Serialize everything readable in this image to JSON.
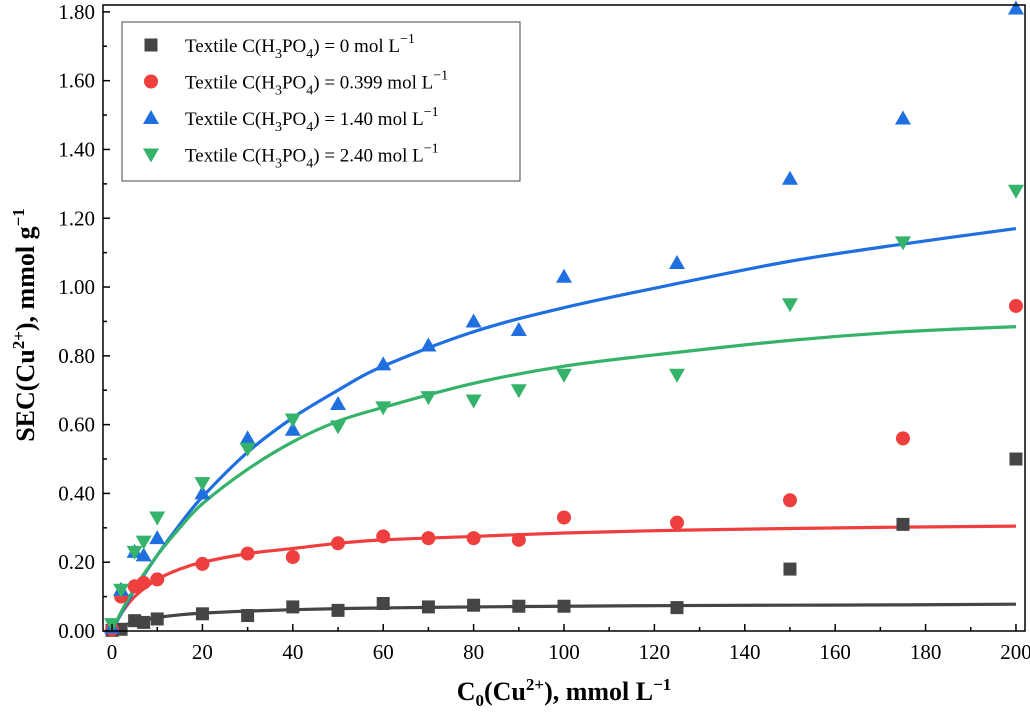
{
  "chart_data": {
    "type": "scatter",
    "xlabel": "C0(Cu2+), mmol L−1",
    "ylabel": "SEC(Cu2+), mmol g−1",
    "xlim": [
      -2,
      202
    ],
    "ylim": [
      0,
      1.82
    ],
    "x_ticks": [
      0,
      20,
      40,
      60,
      80,
      100,
      120,
      140,
      160,
      180,
      200
    ],
    "y_ticks": [
      0,
      0.2,
      0.4,
      0.6,
      0.8,
      1.0,
      1.2,
      1.4,
      1.6,
      1.8
    ],
    "x_tick_labels": [
      "0",
      "20",
      "40",
      "60",
      "80",
      "100",
      "120",
      "140",
      "160",
      "180",
      "200"
    ],
    "y_tick_labels": [
      "0.00",
      "0.20",
      "0.40",
      "0.60",
      "0.80",
      "1.00",
      "1.20",
      "1.40",
      "1.60",
      "1.80"
    ],
    "grid": false,
    "legend_position": "top-left",
    "series": [
      {
        "name": "Textile C(H3PO4) = 0 mol L−1",
        "name_parts": {
          "pre": "Textile C(H",
          "s1": "3",
          "mid": "PO",
          "s2": "4",
          "post": ") = 0 mol L",
          "sup": "−1"
        },
        "marker": "square",
        "color": "#454545",
        "x": [
          0,
          2,
          5,
          7,
          10,
          20,
          30,
          40,
          50,
          60,
          70,
          80,
          90,
          100,
          125,
          150,
          175,
          200
        ],
        "y": [
          0.002,
          0.005,
          0.03,
          0.025,
          0.035,
          0.05,
          0.045,
          0.07,
          0.06,
          0.08,
          0.07,
          0.075,
          0.072,
          0.072,
          0.068,
          0.18,
          0.31,
          0.5
        ],
        "fit": {
          "x": [
            0,
            2,
            5,
            10,
            15,
            20,
            30,
            40,
            50,
            60,
            80,
            100,
            125,
            150,
            175,
            200
          ],
          "y": [
            0,
            0.013,
            0.026,
            0.039,
            0.047,
            0.052,
            0.058,
            0.062,
            0.065,
            0.067,
            0.07,
            0.072,
            0.074,
            0.075,
            0.076,
            0.078
          ]
        }
      },
      {
        "name": "Textile C(H3PO4) = 0.399 mol L−1",
        "name_parts": {
          "pre": "Textile C(H",
          "s1": "3",
          "mid": "PO",
          "s2": "4",
          "post": ") = 0.399 mol L",
          "sup": "−1"
        },
        "marker": "circle",
        "color": "#ef3e3e",
        "x": [
          0,
          2,
          5,
          7,
          10,
          20,
          30,
          40,
          50,
          60,
          70,
          80,
          90,
          100,
          125,
          150,
          175,
          200
        ],
        "y": [
          0.005,
          0.1,
          0.13,
          0.14,
          0.15,
          0.195,
          0.225,
          0.215,
          0.255,
          0.275,
          0.27,
          0.27,
          0.265,
          0.33,
          0.315,
          0.38,
          0.56,
          0.945
        ],
        "fit": {
          "x": [
            0,
            2,
            5,
            10,
            15,
            20,
            30,
            40,
            50,
            60,
            80,
            100,
            125,
            150,
            175,
            200
          ],
          "y": [
            0,
            0.05,
            0.1,
            0.15,
            0.18,
            0.2,
            0.225,
            0.24,
            0.255,
            0.265,
            0.275,
            0.285,
            0.293,
            0.298,
            0.302,
            0.305
          ]
        }
      },
      {
        "name": "Textile C(H3PO4) = 1.40 mol L−1",
        "name_parts": {
          "pre": "Textile C(H",
          "s1": "3",
          "mid": "PO",
          "s2": "4",
          "post": ") = 1.40 mol L",
          "sup": "−1"
        },
        "marker": "triangle-up",
        "color": "#1f6fe0",
        "x": [
          0,
          2,
          5,
          7,
          10,
          20,
          30,
          40,
          50,
          60,
          70,
          80,
          90,
          100,
          125,
          150,
          175,
          200
        ],
        "y": [
          0.01,
          0.12,
          0.23,
          0.22,
          0.27,
          0.4,
          0.56,
          0.585,
          0.66,
          0.775,
          0.83,
          0.9,
          0.875,
          1.03,
          1.07,
          1.315,
          1.49,
          1.81
        ],
        "fit": {
          "x": [
            0,
            2,
            5,
            10,
            15,
            20,
            30,
            40,
            50,
            60,
            80,
            100,
            125,
            150,
            175,
            200
          ],
          "y": [
            0,
            0.05,
            0.12,
            0.22,
            0.31,
            0.39,
            0.52,
            0.62,
            0.7,
            0.77,
            0.87,
            0.94,
            1.01,
            1.075,
            1.125,
            1.17
          ]
        }
      },
      {
        "name": "Textile C(H3PO4) = 2.40 mol L−1",
        "name_parts": {
          "pre": "Textile C(H",
          "s1": "3",
          "mid": "PO",
          "s2": "4",
          "post": ") = 2.40 mol L",
          "sup": "−1"
        },
        "marker": "triangle-down",
        "color": "#36b36a",
        "x": [
          0,
          2,
          5,
          7,
          10,
          20,
          30,
          40,
          50,
          60,
          70,
          80,
          90,
          100,
          125,
          150,
          175,
          200
        ],
        "y": [
          0.02,
          0.12,
          0.23,
          0.26,
          0.33,
          0.43,
          0.53,
          0.615,
          0.595,
          0.65,
          0.68,
          0.67,
          0.7,
          0.745,
          0.745,
          0.95,
          1.13,
          1.28
        ],
        "fit": {
          "x": [
            0,
            2,
            5,
            10,
            15,
            20,
            30,
            40,
            50,
            60,
            80,
            100,
            125,
            150,
            175,
            200
          ],
          "y": [
            0,
            0.055,
            0.125,
            0.22,
            0.3,
            0.37,
            0.47,
            0.55,
            0.61,
            0.65,
            0.72,
            0.77,
            0.81,
            0.845,
            0.87,
            0.885
          ]
        }
      }
    ]
  }
}
